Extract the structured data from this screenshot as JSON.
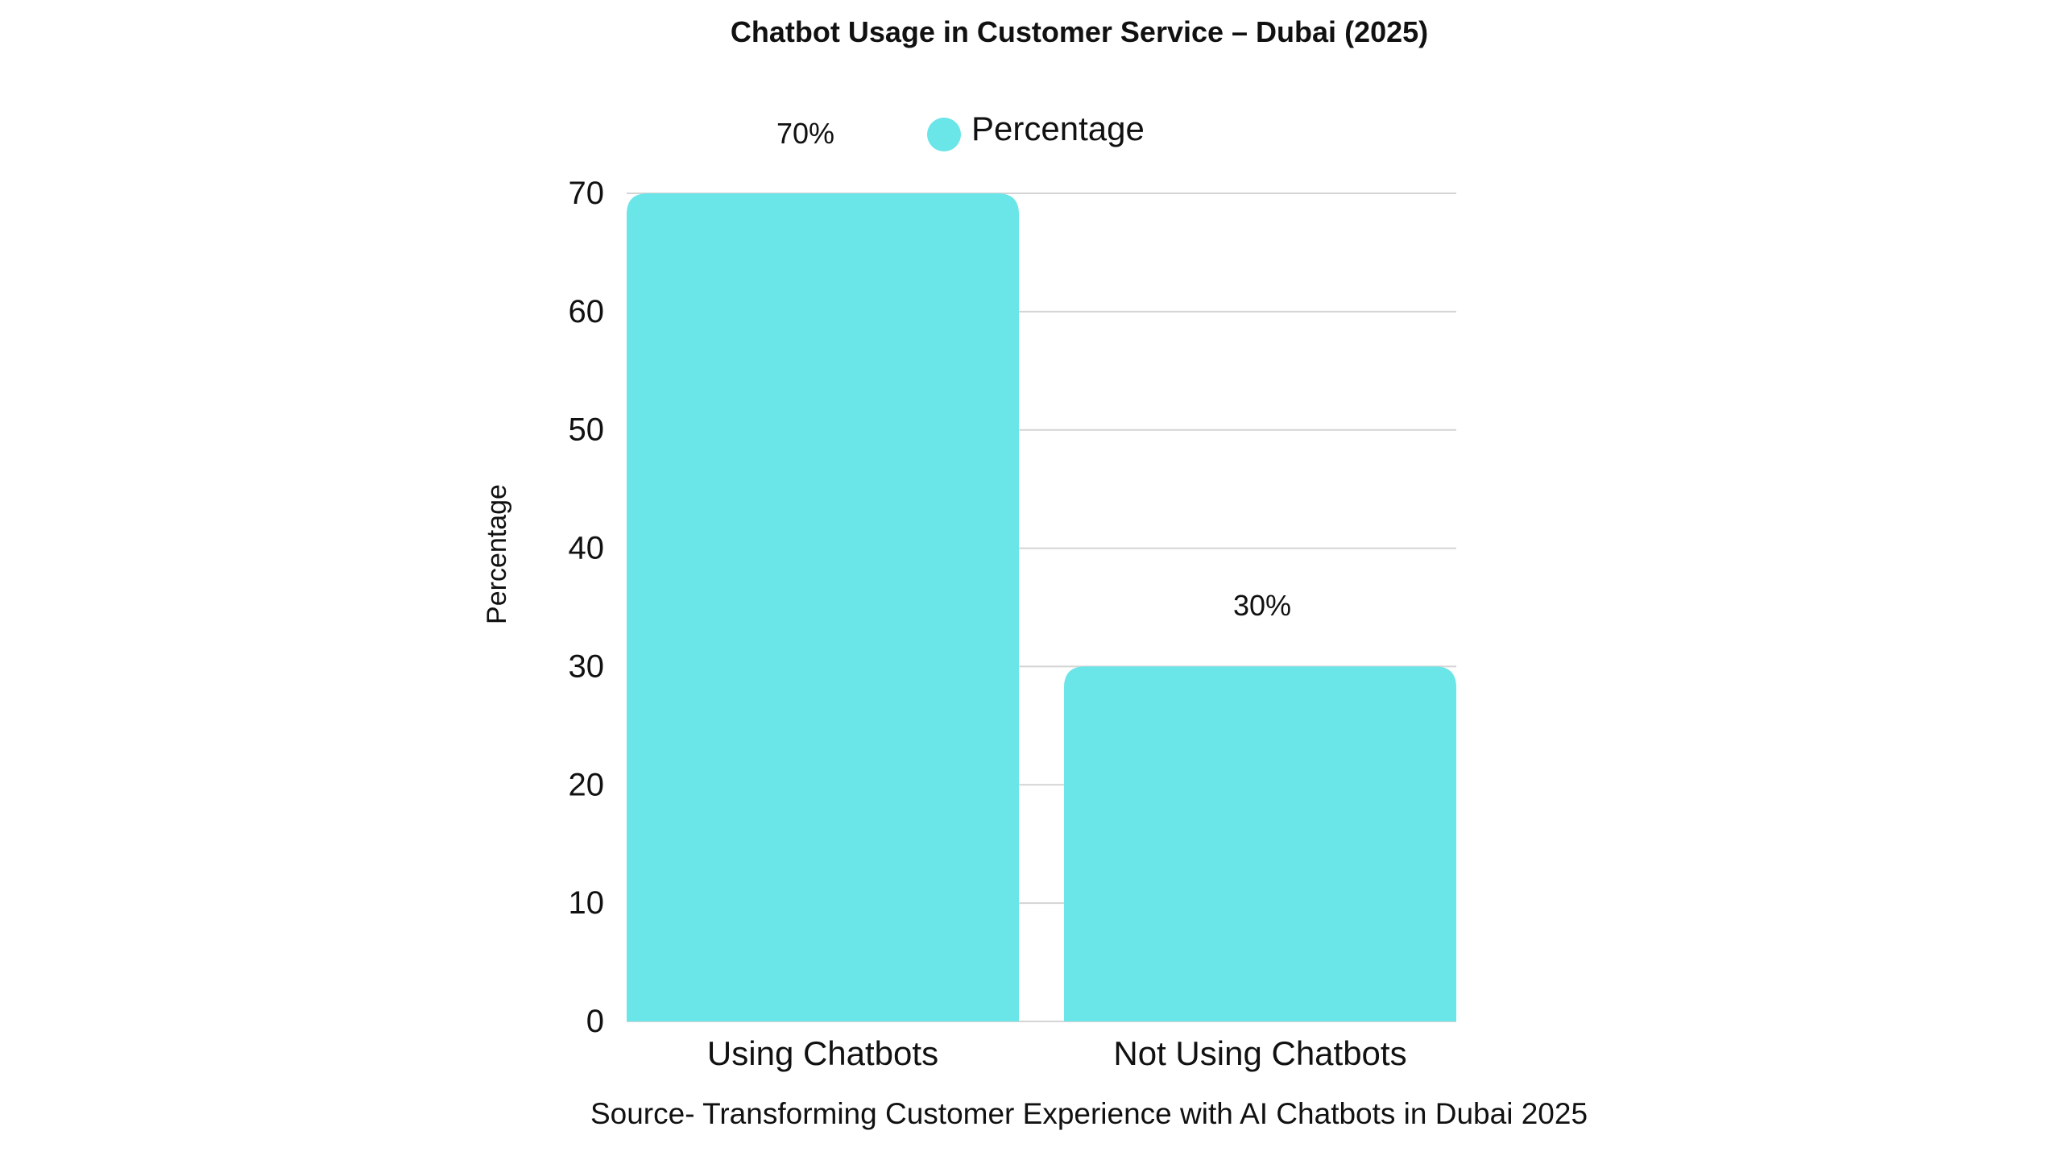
{
  "chart_data": {
    "type": "bar",
    "title": "Chatbot Usage in Customer Service – Dubai (2025)",
    "categories": [
      "Using Chatbots",
      "Not Using Chatbots"
    ],
    "series": [
      {
        "name": "Percentage",
        "values": [
          70,
          30
        ],
        "data_labels": [
          "70%",
          "30%"
        ],
        "color": "#6ae5e8"
      }
    ],
    "ylabel": "Percentage",
    "xlabel": "",
    "ylim": [
      0,
      70
    ],
    "yticks": [
      0,
      10,
      20,
      30,
      40,
      50,
      60,
      70
    ],
    "grid": true,
    "legend_position": "top",
    "source": "Source- Transforming Customer Experience with AI Chatbots in Dubai 2025"
  }
}
